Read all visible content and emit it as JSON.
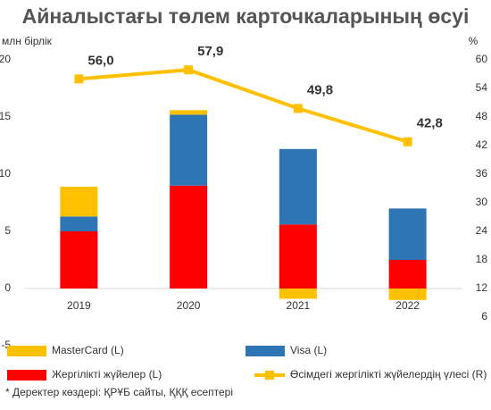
{
  "chart_data": {
    "type": "bar",
    "title": "Айналыстағы төлем карточкаларының өсуі",
    "y_label": "млн бірлік",
    "y2_label": "%",
    "categories": [
      "2019",
      "2020",
      "2021",
      "2022"
    ],
    "series": [
      {
        "name": "Жергілікті жүйелер (L)",
        "color": "#ff0000",
        "values": [
          5.0,
          9.0,
          5.6,
          2.5
        ]
      },
      {
        "name": "Visa (L)",
        "color": "#2e75b6",
        "values": [
          1.3,
          6.2,
          6.6,
          4.5
        ]
      },
      {
        "name": "MasterCard (L)",
        "color": "#ffc000",
        "values": [
          2.6,
          0.4,
          -0.9,
          -1.0
        ]
      },
      {
        "name": "Өсімдегі жергілікті жүйелердің үлесі (R)",
        "color": "#ffc000",
        "type": "line",
        "axis": "y2",
        "values": [
          56.0,
          57.9,
          49.8,
          42.8
        ],
        "value_labels": [
          "56,0",
          "57,9",
          "49,8",
          "42,8"
        ]
      }
    ],
    "stacked": true,
    "ylim": [
      -5,
      20
    ],
    "yticks": [
      -5,
      0,
      5,
      10,
      15,
      20
    ],
    "y2lim": [
      0,
      60
    ],
    "y2ticks": [
      6,
      12,
      18,
      24,
      30,
      36,
      42,
      48,
      54,
      60
    ],
    "footnote": "* Деректер көздері: ҚРҰБ сайты, ҚҚҚ есептері"
  }
}
